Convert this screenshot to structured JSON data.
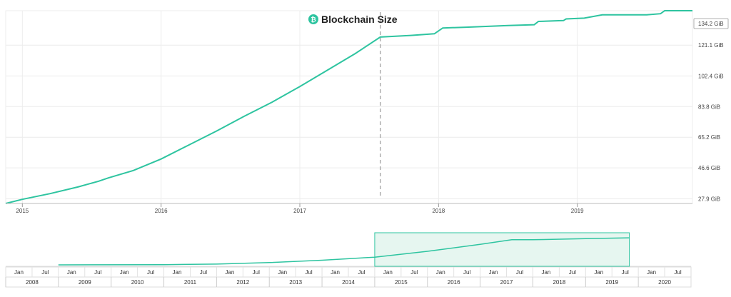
{
  "chart_data": {
    "type": "area",
    "title": "Blockchain Size",
    "title_icon": "bitcoin-icon",
    "accent_color": "#2ec4a0",
    "ytick_labels": [
      "27.9 GiB",
      "46.6 GiB",
      "65.2 GiB",
      "83.8 GiB",
      "102.4 GiB",
      "121.1 GiB"
    ],
    "ytick_values": [
      27.9,
      46.6,
      65.2,
      83.8,
      102.4,
      121.1
    ],
    "current_value_label": "134.2 GiB",
    "current_value": 134.2,
    "xtick_labels": [
      "2015",
      "2016",
      "2017",
      "2018",
      "2019"
    ],
    "xtick_values": [
      2015.0,
      2016.0,
      2017.0,
      2018.0,
      2019.0
    ],
    "xlim": [
      2014.88,
      2019.83
    ],
    "ylim": [
      25.0,
      142.0
    ],
    "crosshair_x": 2017.58,
    "series": [
      {
        "values": [
          [
            2014.88,
            25.0
          ],
          [
            2015.0,
            27.5
          ],
          [
            2015.2,
            31.0
          ],
          [
            2015.4,
            35.0
          ],
          [
            2015.55,
            38.5
          ],
          [
            2015.62,
            40.5
          ],
          [
            2015.8,
            45.0
          ],
          [
            2016.0,
            52.0
          ],
          [
            2016.2,
            60.5
          ],
          [
            2016.4,
            69.0
          ],
          [
            2016.6,
            78.0
          ],
          [
            2016.8,
            86.5
          ],
          [
            2017.0,
            96.0
          ],
          [
            2017.2,
            106.0
          ],
          [
            2017.4,
            116.0
          ],
          [
            2017.58,
            126.0
          ],
          [
            2017.8,
            127.0
          ],
          [
            2017.97,
            128.0
          ],
          [
            2018.03,
            131.5
          ],
          [
            2018.2,
            132.0
          ],
          [
            2018.5,
            133.0
          ],
          [
            2018.69,
            133.5
          ],
          [
            2018.72,
            135.5
          ],
          [
            2018.9,
            136.0
          ],
          [
            2018.92,
            137.0
          ],
          [
            2019.05,
            137.5
          ],
          [
            2019.18,
            139.5
          ],
          [
            2019.5,
            139.5
          ],
          [
            2019.6,
            140.2
          ],
          [
            2019.63,
            142.0
          ],
          [
            2019.83,
            142.0
          ]
        ]
      }
    ],
    "navigator": {
      "x_start": 2008.0,
      "x_end": 2021.0,
      "window": [
        2015.0,
        2019.83
      ],
      "series": [
        [
          2009.0,
          0.0
        ],
        [
          2011.0,
          0.05
        ],
        [
          2012.0,
          0.2
        ],
        [
          2013.0,
          0.6
        ],
        [
          2014.0,
          1.2
        ],
        [
          2015.0,
          2.0
        ],
        [
          2016.0,
          3.5
        ],
        [
          2017.0,
          5.3
        ],
        [
          2017.6,
          6.5
        ],
        [
          2018.0,
          6.5
        ],
        [
          2019.0,
          6.8
        ],
        [
          2019.83,
          7.0
        ]
      ],
      "months": [
        "Jan",
        "Jul",
        "Jan",
        "Jul",
        "Jan",
        "Jul",
        "Jan",
        "Jul",
        "Jan",
        "Jul",
        "Jan",
        "Jul",
        "Jan",
        "Jul",
        "Jan",
        "Jul",
        "Jan",
        "Jul",
        "Jan",
        "Jul",
        "Jan",
        "Jul",
        "Jan",
        "Jul",
        "Jan",
        "Jul"
      ],
      "years": [
        "2008",
        "2009",
        "2010",
        "2011",
        "2012",
        "2013",
        "2014",
        "2015",
        "2016",
        "2017",
        "2018",
        "2019",
        "2020"
      ]
    },
    "grid": true
  }
}
